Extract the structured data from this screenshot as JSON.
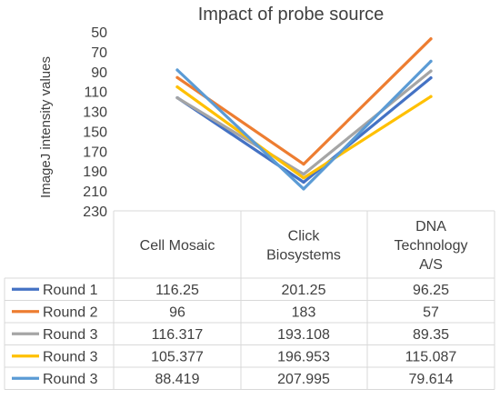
{
  "chart_data": {
    "type": "line",
    "title": "Impact of probe source",
    "ylabel": "ImageJ intensity values",
    "xlabel": "",
    "y_axis_reversed": true,
    "ylim": [
      50,
      230
    ],
    "yticks": [
      "50",
      "70",
      "90",
      "110",
      "130",
      "150",
      "170",
      "190",
      "210",
      "230"
    ],
    "categories": [
      [
        "Cell Mosaic"
      ],
      [
        "Click",
        "Biosystems"
      ],
      [
        "DNA",
        "Technology",
        "A/S"
      ]
    ],
    "series": [
      {
        "name": "Round 1",
        "color": "#4472c4",
        "values": [
          116.25,
          201.25,
          96.25
        ],
        "labels": [
          "116.25",
          "201.25",
          "96.25"
        ]
      },
      {
        "name": "Round 2",
        "color": "#ed7d31",
        "values": [
          96,
          183,
          57
        ],
        "labels": [
          "96",
          "183",
          "57"
        ]
      },
      {
        "name": "Round 3",
        "color": "#a5a5a5",
        "values": [
          116.317,
          193.108,
          89.35
        ],
        "labels": [
          "116.317",
          "193.108",
          "89.35"
        ]
      },
      {
        "name": "Round 3",
        "color": "#ffc000",
        "values": [
          105.377,
          196.953,
          115.087
        ],
        "labels": [
          "105.377",
          "196.953",
          "115.087"
        ]
      },
      {
        "name": "Round 3",
        "color": "#5b9bd5",
        "values": [
          88.419,
          207.995,
          79.614
        ],
        "labels": [
          "88.419",
          "207.995",
          "79.614"
        ]
      }
    ],
    "grid": false,
    "legend": "data-table"
  }
}
